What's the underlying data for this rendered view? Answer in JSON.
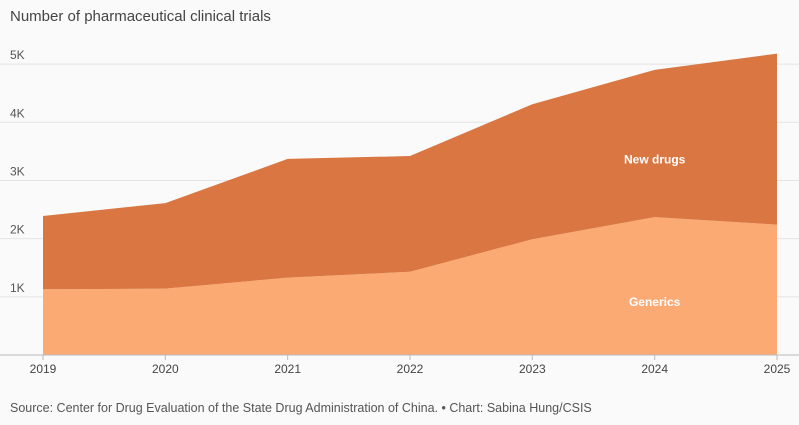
{
  "chart_data": {
    "type": "area",
    "stacked": true,
    "title": "Number of pharmaceutical clinical trials",
    "x": [
      "2019",
      "2020",
      "2021",
      "2022",
      "2023",
      "2024",
      "2025"
    ],
    "series": [
      {
        "name": "Generics",
        "values": [
          1130,
          1140,
          1330,
          1430,
          1990,
          2370,
          2240
        ],
        "color": "#fcaa74"
      },
      {
        "name": "New drugs",
        "values": [
          1260,
          1470,
          2040,
          1990,
          2320,
          2530,
          2940
        ],
        "color": "#d97641"
      }
    ],
    "ylim": [
      0,
      5500
    ],
    "yticks": [
      1000,
      2000,
      3000,
      4000,
      5000
    ],
    "ytick_labels": [
      "1K",
      "2K",
      "3K",
      "4K",
      "5K"
    ],
    "grid": true
  },
  "footer": {
    "source": "Source: Center for Drug Evaluation of the State Drug Administration of China. • Chart: Sabina Hung/CSIS"
  }
}
